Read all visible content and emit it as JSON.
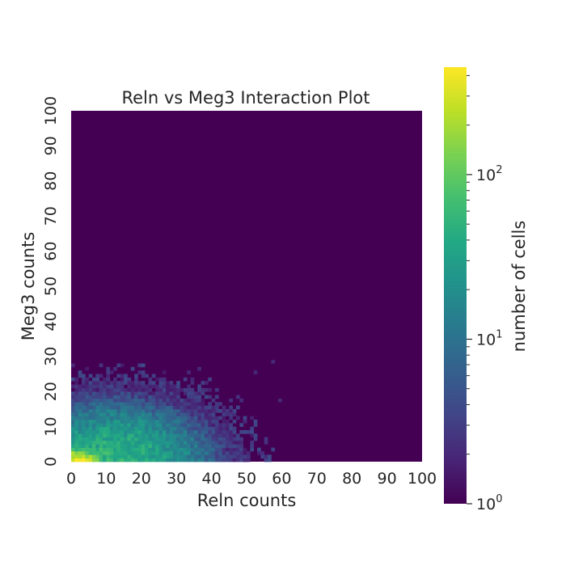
{
  "chart_data": {
    "type": "heatmap",
    "title": "Reln vs Meg3 Interaction Plot",
    "xlabel": "Reln counts",
    "ylabel": "Meg3 counts",
    "x_range": [
      0,
      100
    ],
    "y_range": [
      0,
      100
    ],
    "bin_size": 1,
    "x_ticks": [
      "0",
      "10",
      "20",
      "30",
      "40",
      "50",
      "60",
      "70",
      "80",
      "90",
      "100"
    ],
    "y_ticks": [
      "0",
      "10",
      "20",
      "30",
      "40",
      "50",
      "60",
      "70",
      "80",
      "90",
      "100"
    ],
    "background_count": 1,
    "colormap": "viridis",
    "colorbar": {
      "label": "number of cells",
      "scale": "log",
      "range": [
        1,
        450
      ],
      "major_ticks": [
        {
          "value": 1,
          "base": "10",
          "exp": "0"
        },
        {
          "value": 10,
          "base": "10",
          "exp": "1"
        },
        {
          "value": 100,
          "base": "10",
          "exp": "2"
        }
      ]
    },
    "hotspot": {
      "x": 1,
      "y": 0,
      "count": 450
    },
    "dense_core": {
      "x_extent": [
        0,
        35
      ],
      "y_extent": [
        0,
        20
      ],
      "typical_count": 50
    },
    "outliers": [
      {
        "x": 13,
        "y": 27,
        "count": 3
      },
      {
        "x": 21,
        "y": 24,
        "count": 3
      },
      {
        "x": 23,
        "y": 24,
        "count": 3
      },
      {
        "x": 33,
        "y": 25,
        "count": 2
      },
      {
        "x": 36,
        "y": 26,
        "count": 2
      },
      {
        "x": 52,
        "y": 25,
        "count": 2
      },
      {
        "x": 57,
        "y": 28,
        "count": 2
      },
      {
        "x": 59,
        "y": 17,
        "count": 2
      },
      {
        "x": 40,
        "y": 14,
        "count": 2
      },
      {
        "x": 47,
        "y": 12,
        "count": 2
      },
      {
        "x": 48,
        "y": 5,
        "count": 2
      },
      {
        "x": 49,
        "y": 0,
        "count": 2
      },
      {
        "x": 42,
        "y": 10,
        "count": 2
      }
    ]
  }
}
